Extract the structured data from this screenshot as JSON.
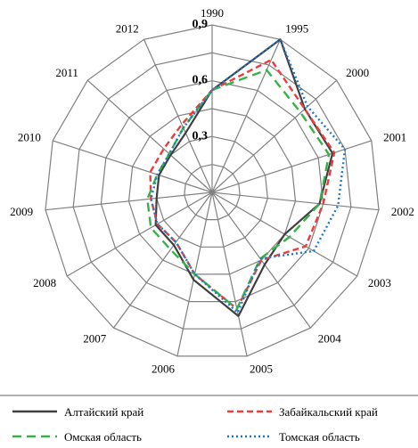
{
  "chart_data": {
    "type": "radar",
    "categories": [
      "1990",
      "1995",
      "2000",
      "2001",
      "2002",
      "2003",
      "2004",
      "2005",
      "2006",
      "2007",
      "2008",
      "2009",
      "2010",
      "2011",
      "2012"
    ],
    "rlim": [
      0,
      0.9
    ],
    "ring_labels": [
      {
        "value": 0.3,
        "label": "0,3"
      },
      {
        "value": 0.6,
        "label": "0,6"
      },
      {
        "value": 0.9,
        "label": "0,9"
      }
    ],
    "grid": true,
    "legend_position": "bottom",
    "series": [
      {
        "name": "Алтайский  край",
        "color": "#404040",
        "dash": "solid",
        "values": [
          0.55,
          0.9,
          0.67,
          0.68,
          0.58,
          0.45,
          0.48,
          0.68,
          0.48,
          0.35,
          0.35,
          0.3,
          0.3,
          0.3,
          0.35
        ]
      },
      {
        "name": "Забайкальский  край",
        "color": "#ee3b3b",
        "dash": "dash",
        "values": [
          0.55,
          0.78,
          0.67,
          0.69,
          0.6,
          0.58,
          0.45,
          0.64,
          0.45,
          0.33,
          0.34,
          0.33,
          0.35,
          0.35,
          0.4
        ]
      },
      {
        "name": "Омская  область",
        "color": "#35b24a",
        "dash": "longdash",
        "values": [
          0.55,
          0.72,
          0.64,
          0.66,
          0.58,
          0.48,
          0.44,
          0.64,
          0.45,
          0.38,
          0.38,
          0.35,
          0.31,
          0.31,
          0.38
        ]
      },
      {
        "name": "Томская  область",
        "color": "#1e78c8",
        "dash": "dot",
        "values": [
          0.55,
          0.9,
          0.69,
          0.75,
          0.68,
          0.63,
          0.44,
          0.66,
          0.45,
          0.33,
          0.34,
          0.33,
          0.31,
          0.31,
          0.38
        ]
      }
    ]
  }
}
